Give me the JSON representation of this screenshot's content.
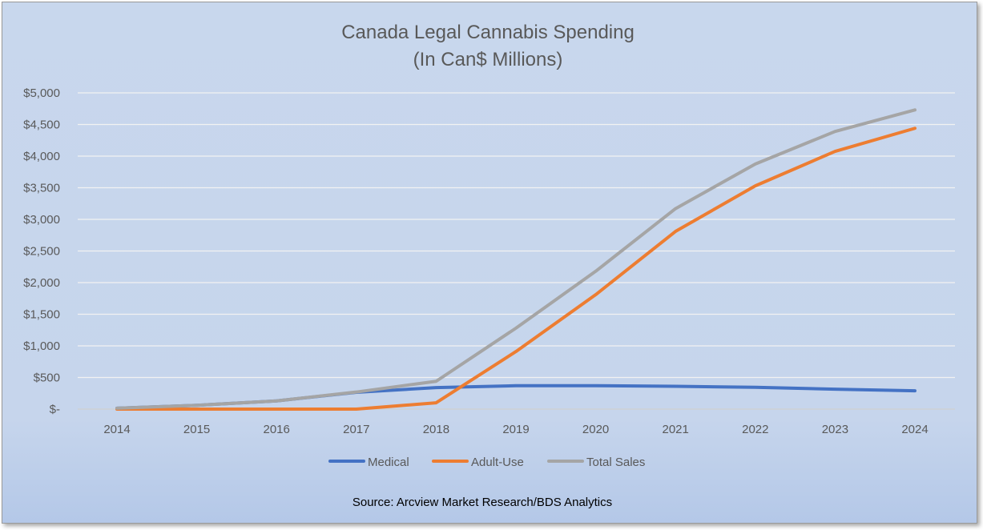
{
  "chart_data": {
    "type": "line",
    "title": "Canada Legal Cannabis Spending",
    "subtitle": "(In Can$ Millions)",
    "xlabel": "",
    "ylabel": "",
    "categories": [
      "2014",
      "2015",
      "2016",
      "2017",
      "2018",
      "2019",
      "2020",
      "2021",
      "2022",
      "2023",
      "2024"
    ],
    "ylim": [
      0,
      5000
    ],
    "y_ticks": [
      0,
      500,
      1000,
      1500,
      2000,
      2500,
      3000,
      3500,
      4000,
      4500,
      5000
    ],
    "y_tick_labels": [
      "$-",
      "$500",
      "$1,000",
      "$1,500",
      "$2,000",
      "$2,500",
      "$3,000",
      "$3,500",
      "$4,000",
      "$4,500",
      "$5,000"
    ],
    "grid": true,
    "legend_position": "bottom",
    "series": [
      {
        "name": "Medical",
        "color": "#4472c4",
        "values": [
          15,
          60,
          130,
          265,
          340,
          370,
          370,
          360,
          345,
          315,
          290
        ]
      },
      {
        "name": "Adult-Use",
        "color": "#ed7d31",
        "values": [
          0,
          0,
          0,
          0,
          100,
          910,
          1810,
          2810,
          3530,
          4075,
          4440
        ]
      },
      {
        "name": "Total Sales",
        "color": "#a5a5a5",
        "values": [
          15,
          60,
          130,
          270,
          440,
          1280,
          2180,
          3170,
          3875,
          4390,
          4730
        ]
      }
    ],
    "source": "Source: Arcview Market Research/BDS Analytics"
  }
}
